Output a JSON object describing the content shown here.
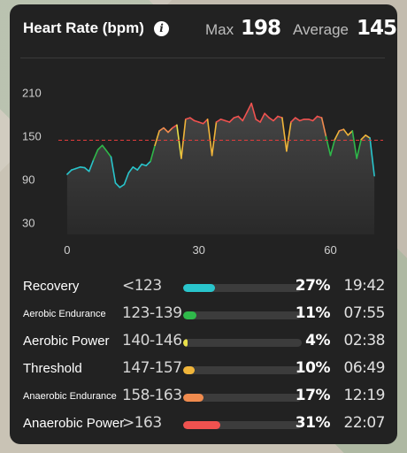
{
  "header": {
    "title": "Heart Rate (bpm)",
    "max_label": "Max",
    "max_value": "198",
    "avg_label": "Average",
    "avg_value": "145"
  },
  "chart_data": {
    "type": "line",
    "ylim": [
      15,
      225
    ],
    "xlim": [
      -2,
      72
    ],
    "yticks": [
      "210",
      "150",
      "90",
      "30"
    ],
    "ytick_values": [
      210,
      150,
      90,
      30
    ],
    "xticks": [
      "0",
      "30",
      "60"
    ],
    "xtick_values": [
      0,
      30,
      60
    ],
    "reference_value": 145,
    "reference_color": "#e23b3b",
    "x": [
      0,
      1,
      2,
      3,
      4,
      5,
      6,
      7,
      8,
      9,
      10,
      11,
      12,
      13,
      14,
      15,
      16,
      17,
      18,
      19,
      20,
      21,
      22,
      23,
      24,
      25,
      26,
      27,
      28,
      29,
      30,
      31,
      32,
      33,
      34,
      35,
      36,
      37,
      38,
      39,
      40,
      41,
      42,
      43,
      44,
      45,
      46,
      47,
      48,
      49,
      50,
      51,
      52,
      53,
      54,
      55,
      56,
      57,
      58,
      59,
      60,
      61,
      62,
      63,
      64,
      65,
      66,
      67,
      68,
      69,
      70
    ],
    "y": [
      98,
      104,
      106,
      108,
      107,
      102,
      118,
      132,
      138,
      130,
      122,
      86,
      80,
      84,
      100,
      108,
      104,
      112,
      110,
      116,
      138,
      158,
      162,
      156,
      162,
      166,
      120,
      174,
      176,
      172,
      170,
      168,
      174,
      124,
      170,
      174,
      172,
      170,
      176,
      178,
      172,
      184,
      196,
      174,
      170,
      182,
      176,
      172,
      178,
      176,
      130,
      170,
      176,
      172,
      174,
      174,
      172,
      178,
      176,
      150,
      124,
      146,
      158,
      160,
      152,
      158,
      120,
      146,
      152,
      148,
      96
    ],
    "zone_colors": {
      "recovery": "#29c5cc",
      "aerobic_endurance": "#2fb84a",
      "aerobic_power": "#e8e04a",
      "threshold": "#f0b53a",
      "anaerobic_endurance": "#f08b4e",
      "anaerobic_power": "#f0524f"
    }
  },
  "zones": [
    {
      "name": "Recovery",
      "range": "<123",
      "fraction": 0.27,
      "percent": "27%",
      "time": "19:42",
      "color": "#29c5cc",
      "size": "large"
    },
    {
      "name": "Aerobic Endurance",
      "range": "123-139",
      "fraction": 0.11,
      "percent": "11%",
      "time": "07:55",
      "color": "#2fb84a",
      "size": "small"
    },
    {
      "name": "Aerobic Power",
      "range": "140-146",
      "fraction": 0.04,
      "percent": "4%",
      "time": "02:38",
      "color": "#e8e04a",
      "size": "large"
    },
    {
      "name": "Threshold",
      "range": "147-157",
      "fraction": 0.1,
      "percent": "10%",
      "time": "06:49",
      "color": "#f0b53a",
      "size": "large"
    },
    {
      "name": "Anaerobic Endurance",
      "range": "158-163",
      "fraction": 0.17,
      "percent": "17%",
      "time": "12:19",
      "color": "#f08b4e",
      "size": "small"
    },
    {
      "name": "Anaerobic Power",
      "range": ">163",
      "fraction": 0.31,
      "percent": "31%",
      "time": "22:07",
      "color": "#f0524f",
      "size": "large"
    }
  ]
}
